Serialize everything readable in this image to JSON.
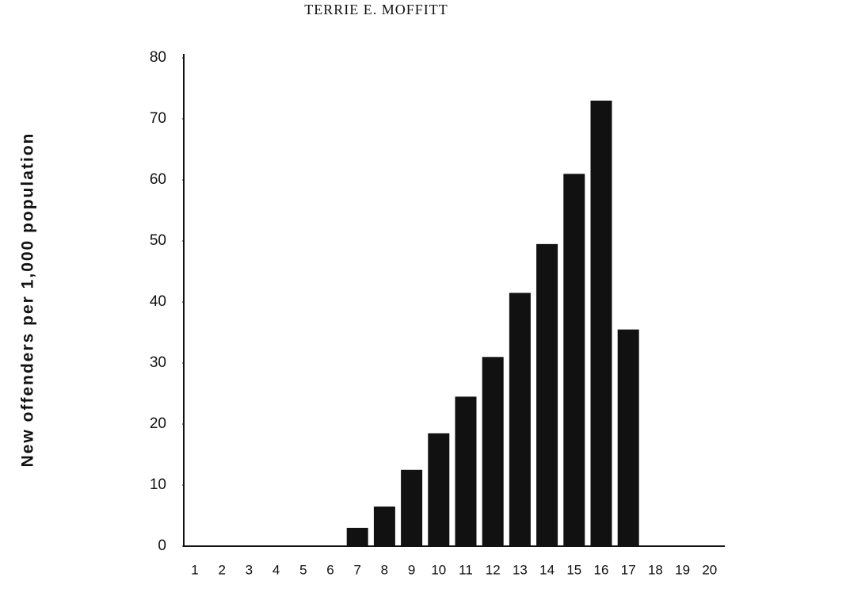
{
  "chart_data": {
    "type": "bar",
    "page_header": "TERRIE E. MOFFITT",
    "y_label": "New offenders per 1,000 population",
    "categories": [
      "1",
      "2",
      "3",
      "4",
      "5",
      "6",
      "7",
      "8",
      "9",
      "10",
      "11",
      "12",
      "13",
      "14",
      "15",
      "16",
      "17",
      "18",
      "19",
      "20"
    ],
    "values": [
      0,
      0,
      0,
      0,
      0,
      0,
      3,
      6.5,
      12.5,
      18.5,
      24.5,
      31,
      41.5,
      49.5,
      61,
      73,
      35.5,
      0,
      0,
      0
    ],
    "color": "#111111",
    "ylim": [
      0,
      80
    ],
    "yticks": [
      0,
      10,
      20,
      30,
      40,
      50,
      60,
      70,
      80
    ],
    "grid": false
  }
}
